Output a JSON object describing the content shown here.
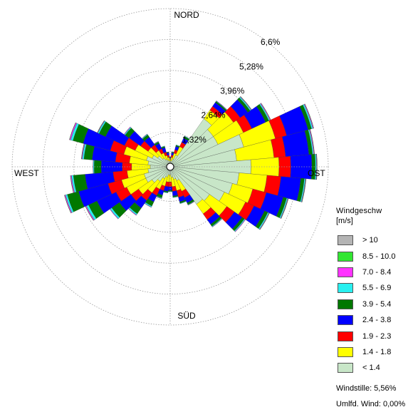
{
  "chart_data": {
    "type": "polar-stacked-bar",
    "title": "",
    "directions": {
      "north": "NORD",
      "east": "OST",
      "south": "SÜD",
      "west": "WEST"
    },
    "ring_labels": [
      "1,32%",
      "2,64%",
      "3,96%",
      "5,28%",
      "6,6%"
    ],
    "ring_values": [
      1.32,
      2.64,
      3.96,
      5.28,
      6.6
    ],
    "legend_title": "Windgeschw",
    "legend_unit": "[m/s]",
    "classes": [
      {
        "label": "> 10",
        "color": "#b4b4b4"
      },
      {
        "label": "8.5 - 10.0",
        "color": "#32e632"
      },
      {
        "label": "7.0 - 8.4",
        "color": "#ff32ff"
      },
      {
        "label": "5.5 - 6.9",
        "color": "#28f0f0"
      },
      {
        "label": "3.9 - 5.4",
        "color": "#007800"
      },
      {
        "label": "2.4 - 3.8",
        "color": "#0000ff"
      },
      {
        "label": "1.9 - 2.3",
        "color": "#ff0000"
      },
      {
        "label": "1.4 - 1.8",
        "color": "#ffff00"
      },
      {
        "label": "< 1.4",
        "color": "#c8e6c8"
      }
    ],
    "sector_count": 36,
    "sector_centers_deg": [
      0,
      10,
      20,
      30,
      40,
      50,
      60,
      70,
      80,
      90,
      100,
      110,
      120,
      130,
      140,
      150,
      160,
      170,
      180,
      190,
      200,
      210,
      220,
      230,
      240,
      250,
      260,
      270,
      280,
      290,
      300,
      310,
      320,
      330,
      340,
      350
    ],
    "sector_percentages_cumulative_by_class_from_inner": [
      [
        0.05,
        0.15,
        0.2,
        0.25,
        0.27,
        0.28,
        0.28,
        0.28,
        0.28
      ],
      [
        0.1,
        0.25,
        0.35,
        0.45,
        0.48,
        0.5,
        0.5,
        0.5,
        0.5
      ],
      [
        0.2,
        0.45,
        0.6,
        0.75,
        0.8,
        0.82,
        0.82,
        0.82,
        0.82
      ],
      [
        0.4,
        0.8,
        1.0,
        1.2,
        1.28,
        1.3,
        1.3,
        1.3,
        1.3
      ],
      [
        2.35,
        2.8,
        3.0,
        3.2,
        3.26,
        3.28,
        3.29,
        3.29,
        3.29
      ],
      [
        2.1,
        3.15,
        3.5,
        3.9,
        4.02,
        4.07,
        4.09,
        4.1,
        4.1
      ],
      [
        2.1,
        3.3,
        3.7,
        4.35,
        4.5,
        4.55,
        4.58,
        4.59,
        4.59
      ],
      [
        3.1,
        4.5,
        5.0,
        5.95,
        6.1,
        6.16,
        6.19,
        6.2,
        6.2
      ],
      [
        2.7,
        4.3,
        4.8,
        5.8,
        5.95,
        6.0,
        6.03,
        6.04,
        6.04
      ],
      [
        3.3,
        4.5,
        5.0,
        5.9,
        6.05,
        6.1,
        6.12,
        6.13,
        6.13
      ],
      [
        2.8,
        4.0,
        4.6,
        5.45,
        5.6,
        5.65,
        5.67,
        5.68,
        5.68
      ],
      [
        2.6,
        3.5,
        4.1,
        4.85,
        5.0,
        5.05,
        5.07,
        5.08,
        5.08
      ],
      [
        2.4,
        3.4,
        3.8,
        4.3,
        4.45,
        4.5,
        4.52,
        4.53,
        4.53
      ],
      [
        1.9,
        2.8,
        3.2,
        3.6,
        3.72,
        3.76,
        3.78,
        3.78,
        3.78
      ],
      [
        1.8,
        2.3,
        2.6,
        2.85,
        2.95,
        2.98,
        2.99,
        2.99,
        2.99
      ],
      [
        0.5,
        1.0,
        1.3,
        1.55,
        1.63,
        1.65,
        1.66,
        1.66,
        1.66
      ],
      [
        0.4,
        0.9,
        1.2,
        1.4,
        1.46,
        1.48,
        1.48,
        1.48,
        1.48
      ],
      [
        0.3,
        0.7,
        0.9,
        1.1,
        1.15,
        1.17,
        1.17,
        1.17,
        1.17
      ],
      [
        0.2,
        0.5,
        0.7,
        0.85,
        0.9,
        0.92,
        0.92,
        0.92,
        0.92
      ],
      [
        0.2,
        0.5,
        0.7,
        0.9,
        0.95,
        0.97,
        0.97,
        0.97,
        0.97
      ],
      [
        0.3,
        0.7,
        0.9,
        1.1,
        1.22,
        1.25,
        1.26,
        1.26,
        1.26
      ],
      [
        0.4,
        0.9,
        1.2,
        1.5,
        1.7,
        1.75,
        1.76,
        1.76,
        1.76
      ],
      [
        0.6,
        1.2,
        1.6,
        2.0,
        2.3,
        2.36,
        2.38,
        2.38,
        2.38
      ],
      [
        0.8,
        1.5,
        1.9,
        2.5,
        2.9,
        2.98,
        3.0,
        3.0,
        3.0
      ],
      [
        1.0,
        1.9,
        2.4,
        3.3,
        3.7,
        3.8,
        3.84,
        3.85,
        3.85
      ],
      [
        1.0,
        2.0,
        2.6,
        3.9,
        4.4,
        4.48,
        4.52,
        4.53,
        4.53
      ],
      [
        0.8,
        1.7,
        2.3,
        3.5,
        4.0,
        4.08,
        4.12,
        4.13,
        4.13
      ],
      [
        0.7,
        1.5,
        1.9,
        2.8,
        3.1,
        3.14,
        3.15,
        3.15,
        3.15
      ],
      [
        0.8,
        1.6,
        2.2,
        3.2,
        3.55,
        3.62,
        3.65,
        3.66,
        3.66
      ],
      [
        0.9,
        1.9,
        2.5,
        3.7,
        4.15,
        4.25,
        4.3,
        4.31,
        4.31
      ],
      [
        0.7,
        1.5,
        2.0,
        2.9,
        3.2,
        3.26,
        3.28,
        3.29,
        3.29
      ],
      [
        0.5,
        1.0,
        1.4,
        2.0,
        2.2,
        2.24,
        2.26,
        2.26,
        2.26
      ],
      [
        0.3,
        0.7,
        1.0,
        1.4,
        1.52,
        1.55,
        1.56,
        1.56,
        1.56
      ],
      [
        0.2,
        0.5,
        0.7,
        0.95,
        1.02,
        1.04,
        1.05,
        1.05,
        1.05
      ],
      [
        0.15,
        0.35,
        0.5,
        0.7,
        0.75,
        0.77,
        0.77,
        0.77,
        0.77
      ],
      [
        0.1,
        0.25,
        0.35,
        0.45,
        0.48,
        0.49,
        0.49,
        0.49,
        0.49
      ]
    ]
  },
  "footer": {
    "calm": "Windstille: 5,56%",
    "variable": "Umlfd. Wind: 0,00%"
  }
}
